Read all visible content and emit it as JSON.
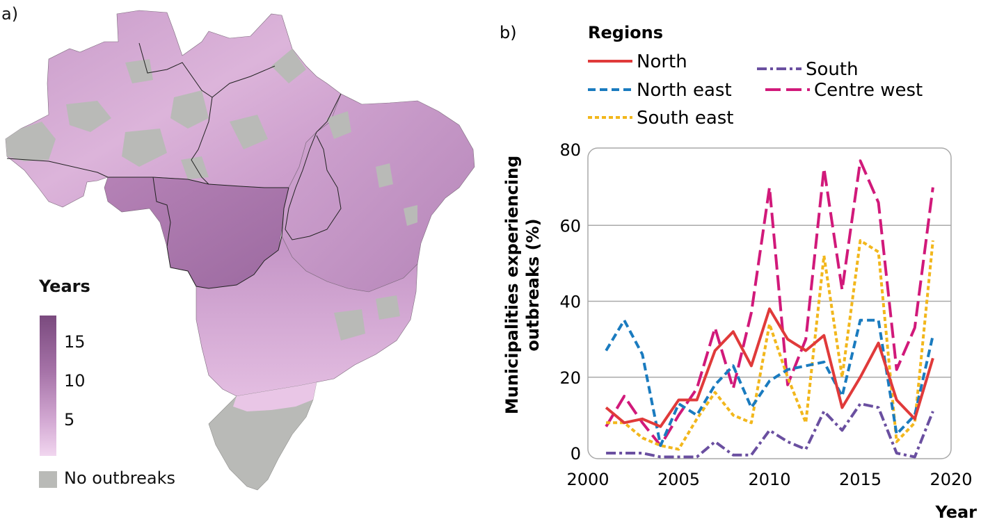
{
  "panels": {
    "a_label": "a)",
    "b_label": "b)"
  },
  "map": {
    "legend_title": "Years",
    "legend_ticks": [
      "15",
      "10",
      "5"
    ],
    "no_data_label": "No outbreaks",
    "colors": {
      "high": "#7a4a7e",
      "mid": "#a673a8",
      "low": "#f1d6ef",
      "no_data": "#b9bab7",
      "border": "#222222"
    }
  },
  "chart_data": {
    "type": "line",
    "title": "",
    "xlabel": "Year",
    "ylabel": "Municipalities experiencing outbreaks (%)",
    "ylabel_lines": [
      "Municipalities experiencing",
      "outbreaks (%)"
    ],
    "xlim": [
      2000,
      2020
    ],
    "ylim": [
      0,
      80
    ],
    "xticks": [
      2000,
      2005,
      2010,
      2015,
      2020
    ],
    "yticks": [
      0,
      20,
      40,
      60,
      80
    ],
    "grid": "horizontal",
    "legend_title": "Regions",
    "legend_position": "top",
    "x": [
      2001,
      2002,
      2003,
      2004,
      2005,
      2006,
      2007,
      2008,
      2009,
      2010,
      2011,
      2012,
      2013,
      2014,
      2015,
      2016,
      2017,
      2018,
      2019
    ],
    "series": [
      {
        "name": "North",
        "color": "#e03a3a",
        "dash": "solid",
        "values": [
          12,
          8,
          9,
          7,
          14,
          14,
          27,
          32,
          23,
          38,
          30,
          27,
          31,
          12,
          20,
          29,
          14,
          9,
          25
        ]
      },
      {
        "name": "North east",
        "color": "#1a7bbf",
        "dash": "dash",
        "values": [
          27,
          35,
          26,
          2,
          13,
          10,
          18,
          23,
          12,
          19,
          22,
          23,
          24,
          15,
          35,
          35,
          5,
          10,
          31
        ]
      },
      {
        "name": "South east",
        "color": "#f2b71c",
        "dash": "shortdash",
        "values": [
          8,
          8,
          4,
          2,
          1,
          9,
          16,
          10,
          8,
          34,
          20,
          8,
          52,
          20,
          56,
          53,
          3,
          8,
          56
        ]
      },
      {
        "name": "South",
        "color": "#6a4fa0",
        "dash": "dashdot",
        "values": [
          0,
          0,
          0,
          -1,
          -1,
          -1,
          3,
          -0.5,
          -0.5,
          6,
          3,
          1,
          11,
          6,
          13,
          12,
          0,
          -1,
          11
        ]
      },
      {
        "name": "Centre west",
        "color": "#d1197a",
        "dash": "longdash",
        "values": [
          7,
          15,
          8,
          2,
          10,
          17,
          33,
          17,
          37,
          70,
          18,
          30,
          75,
          43,
          77,
          66,
          22,
          33,
          70
        ]
      }
    ]
  }
}
